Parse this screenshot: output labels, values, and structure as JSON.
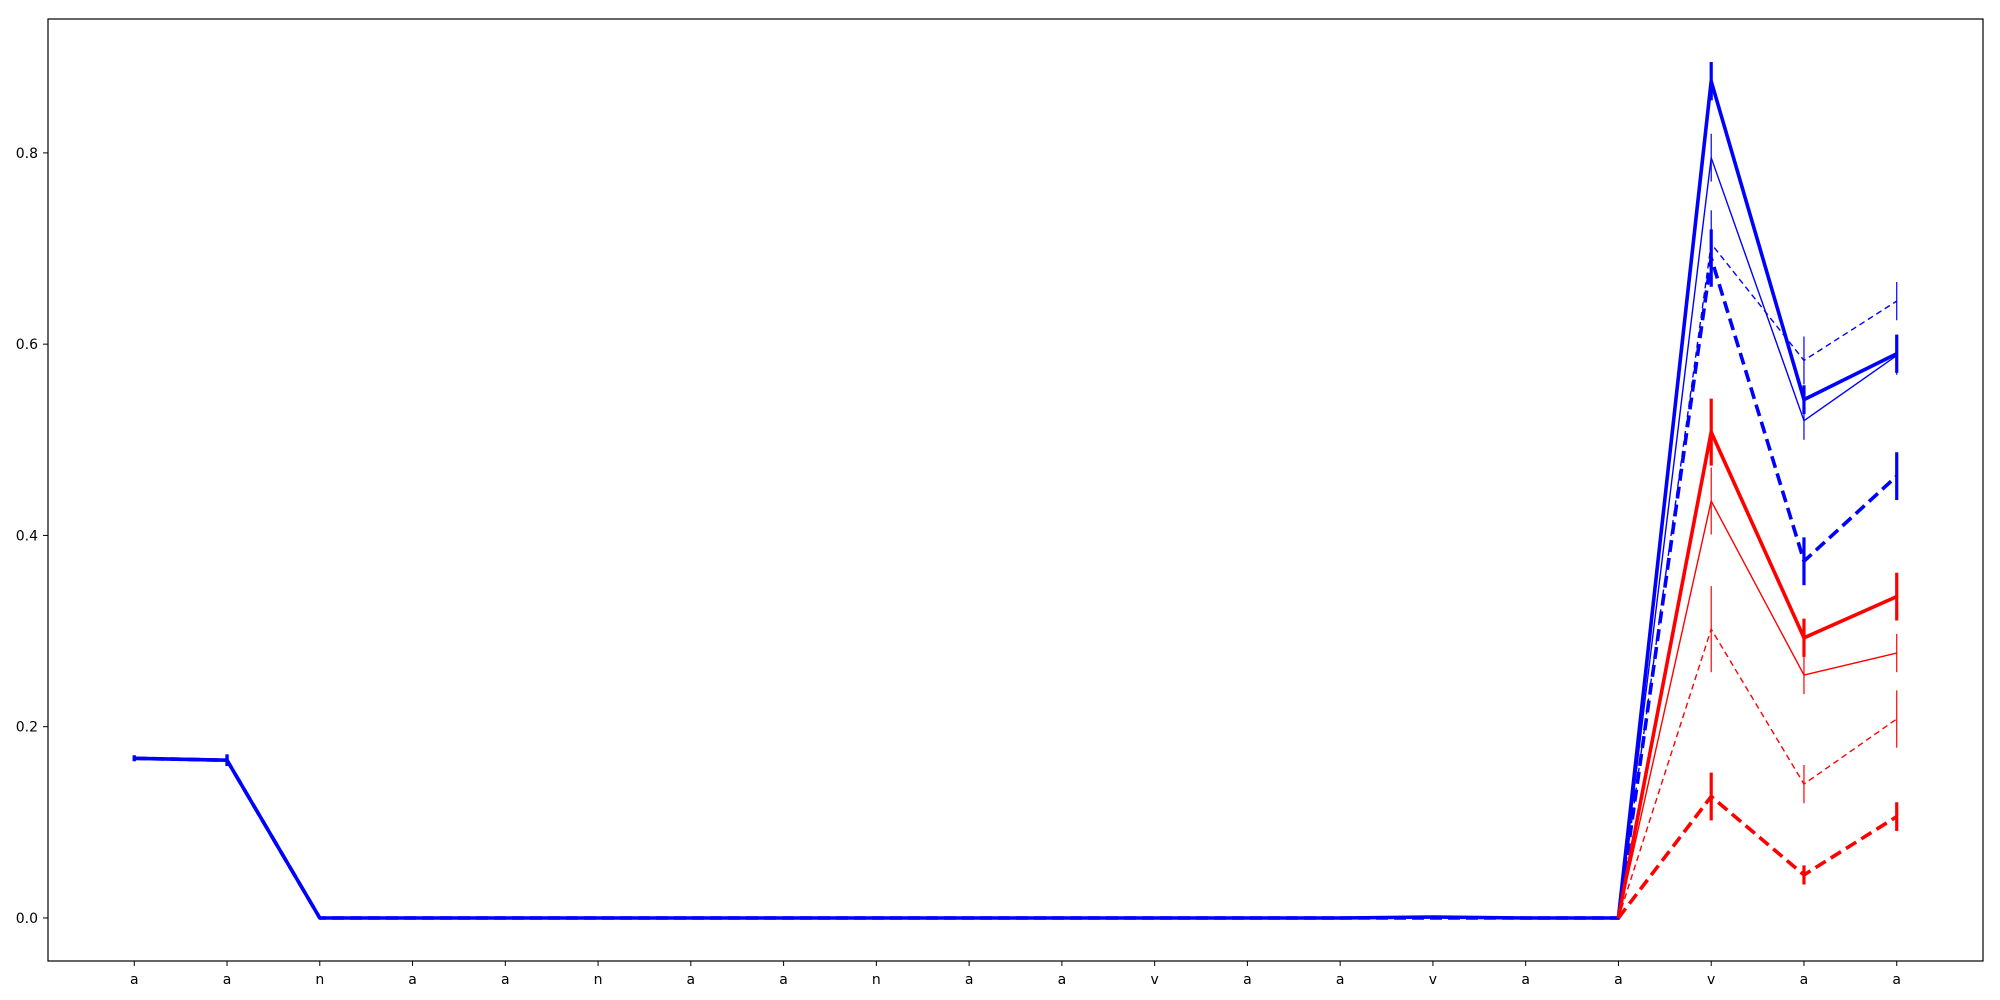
{
  "chart_data": {
    "type": "line",
    "title": "",
    "xlabel": "",
    "ylabel": "",
    "grid": false,
    "legend": "none",
    "categories": [
      "a",
      "a",
      "n",
      "a",
      "a",
      "n",
      "a",
      "a",
      "n",
      "a",
      "a",
      "v",
      "a",
      "a",
      "v",
      "a",
      "a",
      "v",
      "a",
      "a"
    ],
    "xlim": [
      -0.93,
      19.93
    ],
    "ylim": [
      -0.045,
      0.94
    ],
    "yticks": [
      0.0,
      0.2,
      0.4,
      0.6,
      0.8
    ],
    "ytick_labels": [
      "0.0",
      "0.2",
      "0.4",
      "0.6",
      "0.8"
    ],
    "series": [
      {
        "color": "#0000ff",
        "dash": "solid",
        "weight": "thick",
        "values": [
          0.167,
          0.165,
          0.0,
          0.0,
          0.0,
          0.0,
          0.0,
          0.0,
          0.0,
          0.0,
          0.0,
          0.0,
          0.0,
          0.0,
          0.001,
          0.0,
          0.0,
          0.875,
          0.542,
          0.59
        ],
        "errors": [
          0.003,
          0.006,
          0,
          0,
          0,
          0,
          0,
          0,
          0,
          0,
          0,
          0,
          0,
          0,
          0,
          0,
          0,
          0.02,
          0.015,
          0.02
        ]
      },
      {
        "color": "#0000ff",
        "dash": "solid",
        "weight": "thin",
        "values": [
          0.167,
          0.165,
          0.0,
          0.0,
          0.0,
          0.0,
          0.0,
          0.0,
          0.0,
          0.0,
          0.0,
          0.0,
          0.0,
          0.0,
          0.001,
          0.0,
          0.0,
          0.795,
          0.52,
          0.588
        ],
        "errors": [
          0.003,
          0.006,
          0,
          0,
          0,
          0,
          0,
          0,
          0,
          0,
          0,
          0,
          0,
          0,
          0,
          0,
          0,
          0.025,
          0.02,
          0.02
        ]
      },
      {
        "color": "#0000ff",
        "dash": "dashed",
        "weight": "thick",
        "values": [
          0.167,
          0.165,
          0.0,
          0.0,
          0.0,
          0.0,
          0.0,
          0.0,
          0.0,
          0.0,
          0.0,
          0.0,
          0.0,
          0.0,
          0.0,
          0.0,
          0.0,
          0.69,
          0.373,
          0.462
        ],
        "errors": [
          0.003,
          0.006,
          0,
          0,
          0,
          0,
          0,
          0,
          0,
          0,
          0,
          0,
          0,
          0,
          0,
          0,
          0,
          0.03,
          0.025,
          0.025
        ]
      },
      {
        "color": "#0000ff",
        "dash": "dashed",
        "weight": "thin",
        "values": [
          0.167,
          0.165,
          0.0,
          0.0,
          0.0,
          0.0,
          0.0,
          0.0,
          0.0,
          0.0,
          0.0,
          0.0,
          0.0,
          0.0,
          0.0,
          0.0,
          0.0,
          0.705,
          0.583,
          0.645
        ],
        "errors": [
          0.003,
          0.006,
          0,
          0,
          0,
          0,
          0,
          0,
          0,
          0,
          0,
          0,
          0,
          0,
          0,
          0,
          0,
          0.035,
          0.025,
          0.02
        ]
      },
      {
        "color": "#ff0000",
        "dash": "solid",
        "weight": "thick",
        "values": [
          null,
          null,
          null,
          null,
          null,
          null,
          null,
          null,
          null,
          null,
          null,
          null,
          null,
          null,
          null,
          null,
          0.0,
          0.508,
          0.293,
          0.336
        ],
        "errors": [
          0,
          0,
          0,
          0,
          0,
          0,
          0,
          0,
          0,
          0,
          0,
          0,
          0,
          0,
          0,
          0,
          0,
          0.035,
          0.02,
          0.025
        ]
      },
      {
        "color": "#ff0000",
        "dash": "solid",
        "weight": "thin",
        "values": [
          null,
          null,
          null,
          null,
          null,
          null,
          null,
          null,
          null,
          null,
          null,
          null,
          null,
          null,
          null,
          null,
          0.0,
          0.436,
          0.254,
          0.277
        ],
        "errors": [
          0,
          0,
          0,
          0,
          0,
          0,
          0,
          0,
          0,
          0,
          0,
          0,
          0,
          0,
          0,
          0,
          0,
          0.035,
          0.02,
          0.02
        ]
      },
      {
        "color": "#ff0000",
        "dash": "dashed",
        "weight": "thin",
        "values": [
          null,
          null,
          null,
          null,
          null,
          null,
          null,
          null,
          null,
          null,
          null,
          null,
          null,
          null,
          null,
          null,
          0.0,
          0.302,
          0.14,
          0.208
        ],
        "errors": [
          0,
          0,
          0,
          0,
          0,
          0,
          0,
          0,
          0,
          0,
          0,
          0,
          0,
          0,
          0,
          0,
          0,
          0.045,
          0.02,
          0.03
        ]
      },
      {
        "color": "#ff0000",
        "dash": "dashed",
        "weight": "thick",
        "values": [
          null,
          null,
          null,
          null,
          null,
          null,
          null,
          null,
          null,
          null,
          null,
          null,
          null,
          null,
          null,
          null,
          0.0,
          0.127,
          0.045,
          0.106
        ],
        "errors": [
          0,
          0,
          0,
          0,
          0,
          0,
          0,
          0,
          0,
          0,
          0,
          0,
          0,
          0,
          0,
          0,
          0,
          0.025,
          0.01,
          0.015
        ]
      }
    ]
  }
}
